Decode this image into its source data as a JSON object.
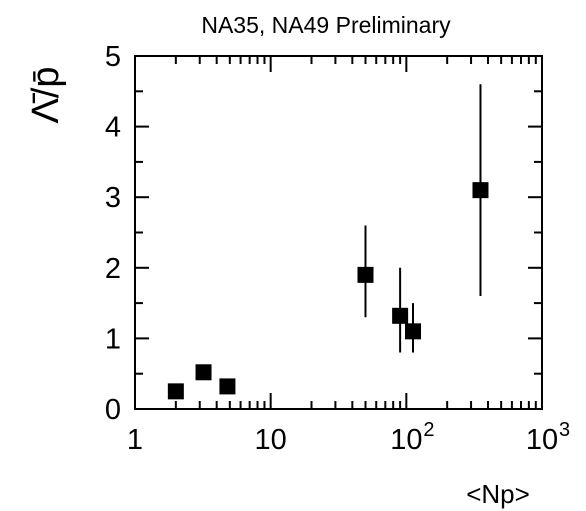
{
  "chart_data": {
    "type": "scatter",
    "title": "NA35, NA49 Preliminary",
    "xlabel": "<Np>",
    "ylabel": "Λ̄/p̄",
    "xscale": "log",
    "xlim": [
      1,
      1000
    ],
    "ylim": [
      0,
      5
    ],
    "grid": false,
    "legend": "none",
    "x_ticks": [
      {
        "value": 1,
        "label": "1"
      },
      {
        "value": 10,
        "label": "10"
      },
      {
        "value": 100,
        "label": "10",
        "exp": "2"
      },
      {
        "value": 1000,
        "label": "10",
        "exp": "3"
      }
    ],
    "y_ticks": [
      "0",
      "1",
      "2",
      "3",
      "4",
      "5"
    ],
    "points": [
      {
        "x": 2,
        "y": 0.25
      },
      {
        "x": 3.2,
        "y": 0.52
      },
      {
        "x": 4.8,
        "y": 0.32
      },
      {
        "x": 50,
        "y": 1.9,
        "ylow": 1.3,
        "yhigh": 2.6
      },
      {
        "x": 90,
        "y": 1.32,
        "ylow": 0.8,
        "yhigh": 2.0
      },
      {
        "x": 112,
        "y": 1.1,
        "ylow": 0.8,
        "yhigh": 1.5
      },
      {
        "x": 352,
        "y": 3.1,
        "ylow": 1.6,
        "yhigh": 4.6
      }
    ],
    "marker_color": "#000000"
  }
}
